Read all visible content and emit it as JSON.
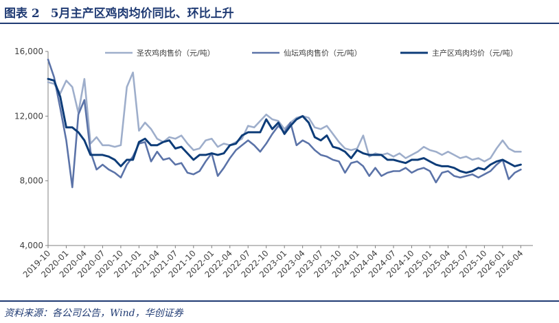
{
  "header": {
    "figure_no": "图表 2",
    "title": "5月主产区鸡肉均价同比、环比上升"
  },
  "source": "资料来源：各公司公告，Wind，华创证券",
  "colors": {
    "accent": "#1f3a73",
    "series_1": "#9eaecb",
    "series_2": "#5b73a8",
    "series_3": "#0d3c78"
  },
  "chart_data": {
    "type": "line",
    "title": "",
    "xlabel": "",
    "ylabel": "",
    "ylim": [
      4000,
      16000
    ],
    "yticks": [
      4000,
      8000,
      12000,
      16000
    ],
    "ytick_labels": [
      "4,000",
      "8,000",
      "12,000",
      "16,000"
    ],
    "grid": false,
    "legend_position": "top",
    "x_ticks": [
      "2019-10",
      "2020-01",
      "2020-04",
      "2020-07",
      "2020-10",
      "2021-01",
      "2021-04",
      "2021-07",
      "2021-10",
      "2022-01",
      "2022-04",
      "2022-07",
      "2022-10",
      "2023-01",
      "2023-04",
      "2023-07",
      "2023-10",
      "2024-01",
      "2024-04",
      "2024-07",
      "2024-10",
      "2025-01",
      "2025-04",
      "2025-07",
      "2025-10",
      "2026-01",
      "2026-04"
    ],
    "x_range": [
      "2019-10",
      "2026-06"
    ],
    "series": [
      {
        "name": "圣农鸡肉售价（元/吨）",
        "color": "#9eaecb",
        "points": [
          [
            "2019-10",
            14100
          ],
          [
            "2019-11",
            14000
          ],
          [
            "2019-12",
            13400
          ],
          [
            "2020-01",
            14200
          ],
          [
            "2020-02",
            13800
          ],
          [
            "2020-03",
            12200
          ],
          [
            "2020-04",
            14300
          ],
          [
            "2020-05",
            10300
          ],
          [
            "2020-06",
            10700
          ],
          [
            "2020-07",
            10200
          ],
          [
            "2020-08",
            10200
          ],
          [
            "2020-09",
            10100
          ],
          [
            "2020-10",
            10200
          ],
          [
            "2020-11",
            13800
          ],
          [
            "2020-12",
            14700
          ],
          [
            "2021-01",
            11100
          ],
          [
            "2021-02",
            11600
          ],
          [
            "2021-03",
            11200
          ],
          [
            "2021-04",
            10600
          ],
          [
            "2021-05",
            10400
          ],
          [
            "2021-06",
            10700
          ],
          [
            "2021-07",
            10600
          ],
          [
            "2021-08",
            10800
          ],
          [
            "2021-09",
            10300
          ],
          [
            "2021-10",
            9900
          ],
          [
            "2021-11",
            10000
          ],
          [
            "2021-12",
            10500
          ],
          [
            "2022-01",
            10600
          ],
          [
            "2022-02",
            10100
          ],
          [
            "2022-03",
            10300
          ],
          [
            "2022-04",
            10200
          ],
          [
            "2022-05",
            10400
          ],
          [
            "2022-06",
            10600
          ],
          [
            "2022-07",
            11400
          ],
          [
            "2022-08",
            11300
          ],
          [
            "2022-09",
            11700
          ],
          [
            "2022-10",
            12100
          ],
          [
            "2022-11",
            11800
          ],
          [
            "2022-12",
            11700
          ],
          [
            "2023-01",
            11200
          ],
          [
            "2023-02",
            11600
          ],
          [
            "2023-03",
            11900
          ],
          [
            "2023-04",
            12000
          ],
          [
            "2023-05",
            11900
          ],
          [
            "2023-06",
            11300
          ],
          [
            "2023-07",
            11200
          ],
          [
            "2023-08",
            11400
          ],
          [
            "2023-09",
            10900
          ],
          [
            "2023-10",
            10400
          ],
          [
            "2023-11",
            10000
          ],
          [
            "2023-12",
            9900
          ],
          [
            "2024-01",
            10000
          ],
          [
            "2024-02",
            10800
          ],
          [
            "2024-03",
            9500
          ],
          [
            "2024-04",
            9700
          ],
          [
            "2024-05",
            9600
          ],
          [
            "2024-06",
            9700
          ],
          [
            "2024-07",
            9500
          ],
          [
            "2024-08",
            9700
          ],
          [
            "2024-09",
            9400
          ],
          [
            "2024-10",
            9600
          ],
          [
            "2024-11",
            9800
          ],
          [
            "2024-12",
            10100
          ],
          [
            "2025-01",
            9900
          ],
          [
            "2025-02",
            9800
          ],
          [
            "2025-03",
            9600
          ],
          [
            "2025-04",
            9800
          ],
          [
            "2025-05",
            9600
          ],
          [
            "2025-06",
            9400
          ],
          [
            "2025-07",
            9500
          ],
          [
            "2025-08",
            9300
          ],
          [
            "2025-09",
            9400
          ],
          [
            "2025-10",
            9200
          ],
          [
            "2025-11",
            9400
          ],
          [
            "2025-12",
            10000
          ],
          [
            "2026-01",
            10500
          ],
          [
            "2026-02",
            10000
          ],
          [
            "2026-03",
            9800
          ],
          [
            "2026-04",
            9800
          ]
        ]
      },
      {
        "name": "仙坛鸡肉售价（元/吨）",
        "color": "#5b73a8",
        "points": [
          [
            "2019-10",
            15500
          ],
          [
            "2019-11",
            14400
          ],
          [
            "2019-12",
            12500
          ],
          [
            "2020-01",
            10500
          ],
          [
            "2020-02",
            7600
          ],
          [
            "2020-03",
            12100
          ],
          [
            "2020-04",
            13000
          ],
          [
            "2020-05",
            9800
          ],
          [
            "2020-06",
            8700
          ],
          [
            "2020-07",
            9000
          ],
          [
            "2020-08",
            8700
          ],
          [
            "2020-09",
            8500
          ],
          [
            "2020-10",
            8200
          ],
          [
            "2020-11",
            9000
          ],
          [
            "2020-12",
            9500
          ],
          [
            "2021-01",
            10300
          ],
          [
            "2021-02",
            10400
          ],
          [
            "2021-03",
            9200
          ],
          [
            "2021-04",
            9800
          ],
          [
            "2021-05",
            9300
          ],
          [
            "2021-06",
            9400
          ],
          [
            "2021-07",
            9000
          ],
          [
            "2021-08",
            9100
          ],
          [
            "2021-09",
            8500
          ],
          [
            "2021-10",
            8400
          ],
          [
            "2021-11",
            8600
          ],
          [
            "2021-12",
            9200
          ],
          [
            "2022-01",
            9700
          ],
          [
            "2022-02",
            8300
          ],
          [
            "2022-03",
            8800
          ],
          [
            "2022-04",
            9400
          ],
          [
            "2022-05",
            9900
          ],
          [
            "2022-06",
            10200
          ],
          [
            "2022-07",
            10500
          ],
          [
            "2022-08",
            10200
          ],
          [
            "2022-09",
            9800
          ],
          [
            "2022-10",
            10300
          ],
          [
            "2022-11",
            10900
          ],
          [
            "2022-12",
            11400
          ],
          [
            "2023-01",
            11000
          ],
          [
            "2023-02",
            11600
          ],
          [
            "2023-03",
            10200
          ],
          [
            "2023-04",
            10500
          ],
          [
            "2023-05",
            10300
          ],
          [
            "2023-06",
            9900
          ],
          [
            "2023-07",
            9600
          ],
          [
            "2023-08",
            9500
          ],
          [
            "2023-09",
            9300
          ],
          [
            "2023-10",
            9200
          ],
          [
            "2023-11",
            8500
          ],
          [
            "2023-12",
            9100
          ],
          [
            "2024-01",
            9200
          ],
          [
            "2024-02",
            8900
          ],
          [
            "2024-03",
            8300
          ],
          [
            "2024-04",
            8800
          ],
          [
            "2024-05",
            8300
          ],
          [
            "2024-06",
            8500
          ],
          [
            "2024-07",
            8600
          ],
          [
            "2024-08",
            8600
          ],
          [
            "2024-09",
            8800
          ],
          [
            "2024-10",
            8500
          ],
          [
            "2024-11",
            8700
          ],
          [
            "2024-12",
            8800
          ],
          [
            "2025-01",
            8600
          ],
          [
            "2025-02",
            7900
          ],
          [
            "2025-03",
            8500
          ],
          [
            "2025-04",
            8600
          ],
          [
            "2025-05",
            8300
          ],
          [
            "2025-06",
            8200
          ],
          [
            "2025-07",
            8300
          ],
          [
            "2025-08",
            8400
          ],
          [
            "2025-09",
            8200
          ],
          [
            "2025-10",
            8400
          ],
          [
            "2025-11",
            8600
          ],
          [
            "2025-12",
            9000
          ],
          [
            "2026-01",
            9300
          ],
          [
            "2026-02",
            8100
          ],
          [
            "2026-03",
            8500
          ],
          [
            "2026-04",
            8700
          ]
        ]
      },
      {
        "name": "主产区鸡肉均价（元/吨）",
        "color": "#0d3c78",
        "points": [
          [
            "2019-10",
            14300
          ],
          [
            "2019-11",
            14200
          ],
          [
            "2019-12",
            13200
          ],
          [
            "2020-01",
            11300
          ],
          [
            "2020-02",
            11300
          ],
          [
            "2020-03",
            11000
          ],
          [
            "2020-04",
            10500
          ],
          [
            "2020-05",
            9600
          ],
          [
            "2020-06",
            9600
          ],
          [
            "2020-07",
            9600
          ],
          [
            "2020-08",
            9500
          ],
          [
            "2020-09",
            9300
          ],
          [
            "2020-10",
            8900
          ],
          [
            "2020-11",
            9300
          ],
          [
            "2020-12",
            9300
          ],
          [
            "2021-01",
            10400
          ],
          [
            "2021-02",
            10600
          ],
          [
            "2021-03",
            10200
          ],
          [
            "2021-04",
            10200
          ],
          [
            "2021-05",
            10400
          ],
          [
            "2021-06",
            10500
          ],
          [
            "2021-07",
            10000
          ],
          [
            "2021-08",
            10100
          ],
          [
            "2021-09",
            9700
          ],
          [
            "2021-10",
            9300
          ],
          [
            "2021-11",
            9600
          ],
          [
            "2021-12",
            9600
          ],
          [
            "2022-01",
            9700
          ],
          [
            "2022-02",
            9600
          ],
          [
            "2022-03",
            9700
          ],
          [
            "2022-04",
            10200
          ],
          [
            "2022-05",
            10300
          ],
          [
            "2022-06",
            10800
          ],
          [
            "2022-07",
            11000
          ],
          [
            "2022-08",
            11000
          ],
          [
            "2022-09",
            11000
          ],
          [
            "2022-10",
            11800
          ],
          [
            "2022-11",
            11200
          ],
          [
            "2022-12",
            11600
          ],
          [
            "2023-01",
            10900
          ],
          [
            "2023-02",
            11400
          ],
          [
            "2023-03",
            11800
          ],
          [
            "2023-04",
            12000
          ],
          [
            "2023-05",
            11600
          ],
          [
            "2023-06",
            10700
          ],
          [
            "2023-07",
            10500
          ],
          [
            "2023-08",
            10800
          ],
          [
            "2023-09",
            10100
          ],
          [
            "2023-10",
            10000
          ],
          [
            "2023-11",
            9800
          ],
          [
            "2023-12",
            9400
          ],
          [
            "2024-01",
            9900
          ],
          [
            "2024-02",
            9700
          ],
          [
            "2024-03",
            9600
          ],
          [
            "2024-04",
            9600
          ],
          [
            "2024-05",
            9600
          ],
          [
            "2024-06",
            9300
          ],
          [
            "2024-07",
            9300
          ],
          [
            "2024-08",
            9200
          ],
          [
            "2024-09",
            9100
          ],
          [
            "2024-10",
            9300
          ],
          [
            "2024-11",
            9300
          ],
          [
            "2024-12",
            9400
          ],
          [
            "2025-01",
            9200
          ],
          [
            "2025-02",
            9000
          ],
          [
            "2025-03",
            8900
          ],
          [
            "2025-04",
            8900
          ],
          [
            "2025-05",
            8800
          ],
          [
            "2025-06",
            8600
          ],
          [
            "2025-07",
            8500
          ],
          [
            "2025-08",
            8600
          ],
          [
            "2025-09",
            8800
          ],
          [
            "2025-10",
            8700
          ],
          [
            "2025-11",
            9000
          ],
          [
            "2025-12",
            9200
          ],
          [
            "2026-01",
            9300
          ],
          [
            "2026-02",
            9100
          ],
          [
            "2026-03",
            8900
          ],
          [
            "2026-04",
            9000
          ]
        ]
      }
    ]
  }
}
